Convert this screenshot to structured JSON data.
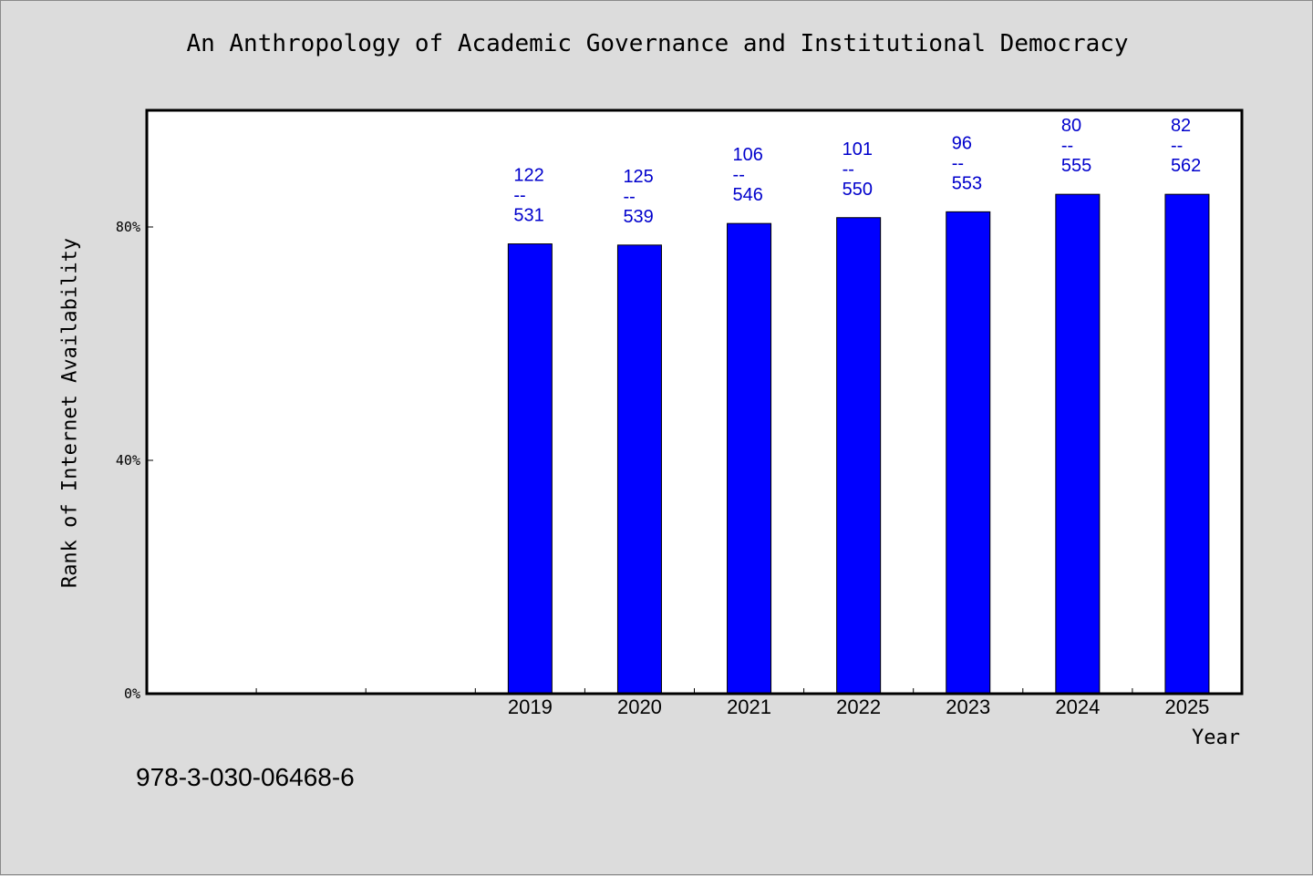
{
  "chart_data": {
    "type": "bar",
    "title": "An Anthropology of Academic Governance and Institutional Democracy",
    "xlabel": "Year",
    "ylabel": "Rank of Internet Availability",
    "categories": [
      "",
      "",
      "",
      "2019",
      "2020",
      "2021",
      "2022",
      "2023",
      "2024",
      "2025"
    ],
    "values": [
      null,
      null,
      null,
      77.1,
      76.9,
      80.6,
      81.6,
      82.6,
      85.6,
      85.6
    ],
    "data_labels": [
      null,
      null,
      null,
      {
        "rank": "122",
        "sep": "--",
        "total": "531"
      },
      {
        "rank": "125",
        "sep": "--",
        "total": "539"
      },
      {
        "rank": "106",
        "sep": "--",
        "total": "546"
      },
      {
        "rank": "101",
        "sep": "--",
        "total": "550"
      },
      {
        "rank": "96",
        "sep": "--",
        "total": "553"
      },
      {
        "rank": "80",
        "sep": "--",
        "total": "555"
      },
      {
        "rank": "82",
        "sep": "--",
        "total": "562"
      }
    ],
    "yticks": [
      0,
      40,
      80
    ],
    "ytick_labels": [
      "0%",
      "40%",
      "80%"
    ],
    "ylim": [
      0,
      100
    ],
    "bar_color": "#0000ff",
    "label_color": "#0000cc",
    "grid": false,
    "legend": "none"
  },
  "footer": {
    "isbn": "978-3-030-06468-6"
  }
}
